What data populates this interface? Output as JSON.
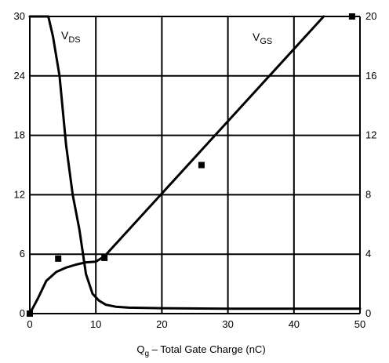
{
  "chart_data": {
    "type": "line",
    "xlabel": {
      "main": "Q",
      "sub": "g",
      "rest": " – Total Gate Charge (nC)"
    },
    "xlim": [
      0,
      50
    ],
    "ylim_left": [
      0,
      30
    ],
    "ylim_right": [
      0,
      20
    ],
    "x_ticks": [
      "0",
      "10",
      "20",
      "30",
      "40",
      "50"
    ],
    "y_ticks_left": [
      "0",
      "6",
      "12",
      "18",
      "24",
      "30"
    ],
    "y_ticks_right": [
      "0",
      "4",
      "8",
      "12",
      "16",
      "20"
    ],
    "grid": true,
    "series": [
      {
        "name": "VDS",
        "label_main": "V",
        "label_sub": "DS",
        "axis": "left",
        "x": [
          0,
          2.8,
          3.5,
          4.5,
          5.5,
          6.5,
          7.5,
          8.5,
          9.5,
          10.5,
          11.5,
          13,
          15,
          20,
          30,
          40,
          50
        ],
        "y": [
          30,
          30,
          28,
          24,
          17,
          12,
          8.5,
          4,
          2,
          1.3,
          0.9,
          0.7,
          0.6,
          0.55,
          0.5,
          0.5,
          0.5
        ]
      },
      {
        "name": "VGS",
        "label_main": "V",
        "label_sub": "GS",
        "axis": "right",
        "x": [
          0,
          1.2,
          2.5,
          4,
          5.5,
          7,
          8.5,
          10,
          11.3,
          44.5
        ],
        "y": [
          0,
          1,
          2.2,
          2.8,
          3.1,
          3.3,
          3.45,
          3.5,
          3.85,
          20
        ]
      }
    ],
    "markers": {
      "axis": "right",
      "points": [
        [
          0,
          0
        ],
        [
          4.3,
          3.7
        ],
        [
          11.3,
          3.75
        ],
        [
          26,
          10
        ],
        [
          48.8,
          20
        ]
      ]
    }
  }
}
